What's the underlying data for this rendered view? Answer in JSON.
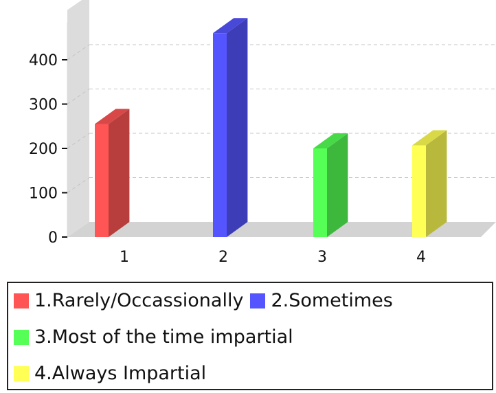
{
  "chart_data": {
    "type": "bar",
    "categories": [
      "1",
      "2",
      "3",
      "4"
    ],
    "values": [
      255,
      460,
      200,
      207
    ],
    "ylim": [
      0,
      500
    ],
    "yticks": [
      0,
      100,
      200,
      300,
      400
    ],
    "title": "",
    "xlabel": "",
    "ylabel": "",
    "grid": true,
    "legend_position": "bottom",
    "series": [
      {
        "name": "1.Rarely/Occassionally",
        "color": "#ff5555",
        "value": 255
      },
      {
        "name": "2.Sometimes",
        "color": "#5555ff",
        "value": 460
      },
      {
        "name": "3.Most of the time impartial",
        "color": "#55ff55",
        "value": 200
      },
      {
        "name": "4.Always Impartial",
        "color": "#ffff55",
        "value": 207
      }
    ]
  }
}
